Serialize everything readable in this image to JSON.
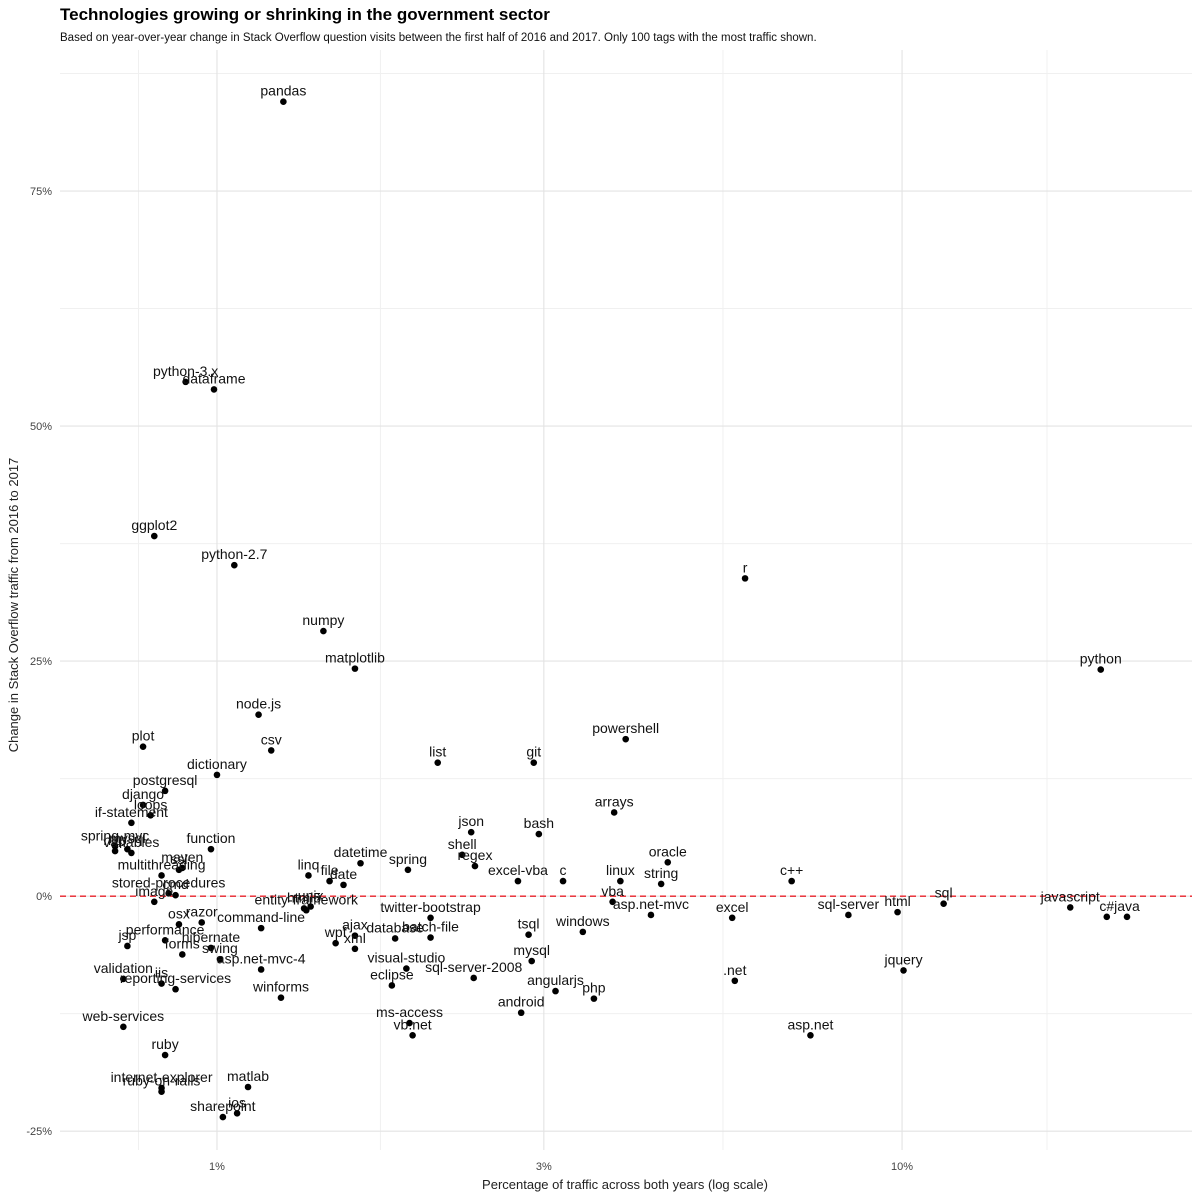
{
  "chart_data": {
    "type": "scatter",
    "title": "Technologies growing or shrinking in the government sector",
    "subtitle": "Based on year-over-year change in Stack Overflow question visits between the first half of 2016 and 2017. Only 100 tags with the most traffic shown.",
    "xlabel": "Percentage of traffic across both years (log scale)",
    "ylabel": "Change in Stack Overflow traffic from 2016 to 2017",
    "x_scale": "log",
    "xlim": [
      0.59,
      26.5
    ],
    "ylim": [
      -27,
      90
    ],
    "x_ticks": [
      {
        "value": 1,
        "label": "1%"
      },
      {
        "value": 3,
        "label": "3%"
      },
      {
        "value": 10,
        "label": "10%"
      }
    ],
    "y_ticks": [
      {
        "value": -25,
        "label": "-25%"
      },
      {
        "value": 0,
        "label": "0%"
      },
      {
        "value": 25,
        "label": "25%"
      },
      {
        "value": 50,
        "label": "50%"
      },
      {
        "value": 75,
        "label": "75%"
      }
    ],
    "grid": true,
    "reference_line": {
      "y": 0,
      "color": "#e8202a",
      "style": "dashed"
    },
    "points": [
      {
        "label": "pandas",
        "x": 1.25,
        "y": 84.5
      },
      {
        "label": "python-3.x",
        "x": 0.9,
        "y": 54.7
      },
      {
        "label": "dataframe",
        "x": 0.99,
        "y": 53.9
      },
      {
        "label": "ggplot2",
        "x": 0.81,
        "y": 38.3
      },
      {
        "label": "python-2.7",
        "x": 1.06,
        "y": 35.2
      },
      {
        "label": "numpy",
        "x": 1.43,
        "y": 28.2
      },
      {
        "label": "matplotlib",
        "x": 1.59,
        "y": 24.2
      },
      {
        "label": "r",
        "x": 5.9,
        "y": 33.8
      },
      {
        "label": "python",
        "x": 19.5,
        "y": 24.1
      },
      {
        "label": "node.js",
        "x": 1.15,
        "y": 19.3
      },
      {
        "label": "powershell",
        "x": 3.95,
        "y": 16.7
      },
      {
        "label": "plot",
        "x": 0.78,
        "y": 15.9
      },
      {
        "label": "csv",
        "x": 1.2,
        "y": 15.5
      },
      {
        "label": "dictionary",
        "x": 1.0,
        "y": 12.9
      },
      {
        "label": "list",
        "x": 2.1,
        "y": 14.2
      },
      {
        "label": "git",
        "x": 2.9,
        "y": 14.2
      },
      {
        "label": "postgresql",
        "x": 0.84,
        "y": 11.2
      },
      {
        "label": "django",
        "x": 0.78,
        "y": 9.7
      },
      {
        "label": "arrays",
        "x": 3.8,
        "y": 8.9
      },
      {
        "label": "loops",
        "x": 0.8,
        "y": 8.6
      },
      {
        "label": "if-statement",
        "x": 0.75,
        "y": 7.8
      },
      {
        "label": "json",
        "x": 2.35,
        "y": 6.8
      },
      {
        "label": "bash",
        "x": 2.95,
        "y": 6.6
      },
      {
        "label": "spring-mvc",
        "x": 0.71,
        "y": 5.3
      },
      {
        "label": "mysql",
        "x": 0.74,
        "y": 5.0
      },
      {
        "label": "function",
        "x": 0.98,
        "y": 5.0
      },
      {
        "label": "http",
        "x": 0.71,
        "y": 4.8
      },
      {
        "label": "variables",
        "x": 0.75,
        "y": 4.6
      },
      {
        "label": "datetime",
        "x": 1.62,
        "y": 3.5
      },
      {
        "label": "shell",
        "x": 2.28,
        "y": 4.4
      },
      {
        "label": "oracle",
        "x": 4.55,
        "y": 3.6
      },
      {
        "label": "maven",
        "x": 0.89,
        "y": 3.0
      },
      {
        "label": "ssl",
        "x": 0.88,
        "y": 2.8
      },
      {
        "label": "multithreading",
        "x": 0.83,
        "y": 2.2
      },
      {
        "label": "regex",
        "x": 2.38,
        "y": 3.2
      },
      {
        "label": "spring",
        "x": 1.9,
        "y": 2.8
      },
      {
        "label": "linq",
        "x": 1.36,
        "y": 2.2
      },
      {
        "label": "file",
        "x": 1.46,
        "y": 1.6
      },
      {
        "label": "date",
        "x": 1.53,
        "y": 1.2
      },
      {
        "label": "excel-vba",
        "x": 2.75,
        "y": 1.6
      },
      {
        "label": "c",
        "x": 3.2,
        "y": 1.6
      },
      {
        "label": "linux",
        "x": 3.88,
        "y": 1.6
      },
      {
        "label": "string",
        "x": 4.45,
        "y": 1.3
      },
      {
        "label": "c++",
        "x": 6.9,
        "y": 1.6
      },
      {
        "label": "stored-procedures",
        "x": 0.85,
        "y": 0.3
      },
      {
        "label": "cmd",
        "x": 0.87,
        "y": 0.1
      },
      {
        "label": "html5",
        "x": 1.34,
        "y": -1.3
      },
      {
        "label": "unix",
        "x": 1.37,
        "y": -1.1
      },
      {
        "label": "entity-framework",
        "x": 1.35,
        "y": -1.5
      },
      {
        "label": "twitter-bootstrap",
        "x": 2.05,
        "y": -2.3
      },
      {
        "label": "vba",
        "x": 3.78,
        "y": -0.6
      },
      {
        "label": "asp.net-mvc",
        "x": 4.3,
        "y": -2.0
      },
      {
        "label": "excel",
        "x": 5.65,
        "y": -2.3
      },
      {
        "label": "sql-server",
        "x": 8.35,
        "y": -2.0
      },
      {
        "label": "html",
        "x": 9.85,
        "y": -1.7
      },
      {
        "label": "sql",
        "x": 11.5,
        "y": -0.8
      },
      {
        "label": "javascript",
        "x": 17.6,
        "y": -1.2
      },
      {
        "label": "c#",
        "x": 19.9,
        "y": -2.2
      },
      {
        "label": "java",
        "x": 21.3,
        "y": -2.2
      },
      {
        "label": "image",
        "x": 0.81,
        "y": -0.6
      },
      {
        "label": "razor",
        "x": 0.95,
        "y": -2.8
      },
      {
        "label": "osx",
        "x": 0.88,
        "y": -3.0
      },
      {
        "label": "forms",
        "x": 0.89,
        "y": -6.2
      },
      {
        "label": "command-line",
        "x": 1.16,
        "y": -3.4
      },
      {
        "label": "ajax",
        "x": 1.59,
        "y": -4.2
      },
      {
        "label": "database",
        "x": 1.82,
        "y": -4.5
      },
      {
        "label": "batch-file",
        "x": 2.05,
        "y": -4.4
      },
      {
        "label": "tsql",
        "x": 2.85,
        "y": -4.1
      },
      {
        "label": "windows",
        "x": 3.42,
        "y": -3.8
      },
      {
        "label": "wpf",
        "x": 1.49,
        "y": -5.0
      },
      {
        "label": "jsp",
        "x": 0.74,
        "y": -5.3
      },
      {
        "label": "performance",
        "x": 0.84,
        "y": -4.7
      },
      {
        "label": "hibernate",
        "x": 0.98,
        "y": -5.5
      },
      {
        "label": "swing",
        "x": 1.01,
        "y": -6.7
      },
      {
        "label": "xml",
        "x": 1.59,
        "y": -5.6
      },
      {
        "label": "visual-studio",
        "x": 1.89,
        "y": -7.7
      },
      {
        "label": "mysql",
        "x": 2.88,
        "y": -6.9
      },
      {
        "label": "validation",
        "x": 0.73,
        "y": -8.8
      },
      {
        "label": "iis",
        "x": 0.83,
        "y": -9.3
      },
      {
        "label": "asp.net-mvc-4",
        "x": 1.16,
        "y": -7.8
      },
      {
        "label": "reporting-services",
        "x": 0.87,
        "y": -9.9
      },
      {
        "label": "winforms",
        "x": 1.24,
        "y": -10.8
      },
      {
        "label": "eclipse",
        "x": 1.8,
        "y": -9.5
      },
      {
        "label": "sql-server-2008",
        "x": 2.37,
        "y": -8.7
      },
      {
        "label": "angularjs",
        "x": 3.12,
        "y": -10.1
      },
      {
        "label": "php",
        "x": 3.55,
        "y": -10.9
      },
      {
        "label": ".net",
        "x": 5.7,
        "y": -9.0
      },
      {
        "label": "jquery",
        "x": 10.05,
        "y": -7.9
      },
      {
        "label": "web-services",
        "x": 0.73,
        "y": -13.9
      },
      {
        "label": "android",
        "x": 2.78,
        "y": -12.4
      },
      {
        "label": "ms-access",
        "x": 1.91,
        "y": -13.5
      },
      {
        "label": "vb.net",
        "x": 1.93,
        "y": -14.8
      },
      {
        "label": "asp.net",
        "x": 7.35,
        "y": -14.8
      },
      {
        "label": "ruby",
        "x": 0.84,
        "y": -16.9
      },
      {
        "label": "internet-explorer",
        "x": 0.83,
        "y": -20.4
      },
      {
        "label": "ruby-on-rails",
        "x": 0.83,
        "y": -20.8
      },
      {
        "label": "matlab",
        "x": 1.11,
        "y": -20.3
      },
      {
        "label": "sharepoint",
        "x": 1.02,
        "y": -23.5
      },
      {
        "label": "ios",
        "x": 1.07,
        "y": -23.1
      }
    ]
  }
}
